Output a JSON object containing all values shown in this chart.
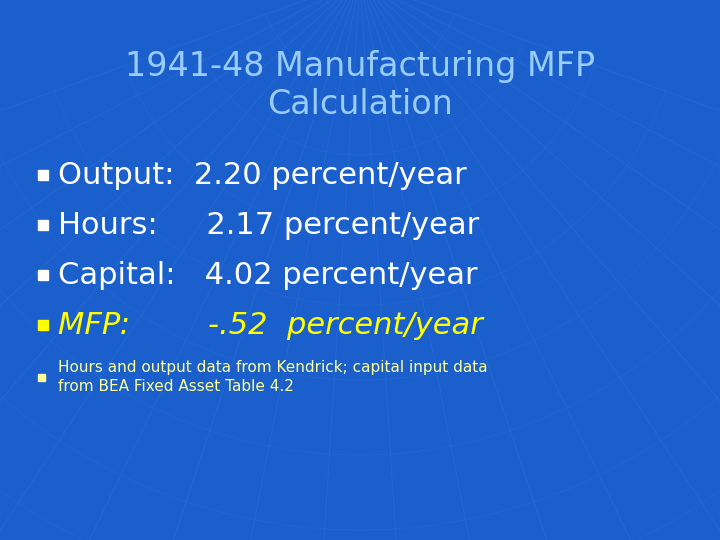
{
  "title_line1": "1941-48 Manufacturing MFP",
  "title_line2": "Calculation",
  "title_color": "#99CCFF",
  "title_fontsize": 24,
  "background_color": "#1A5FCC",
  "bullet_items": [
    {
      "label": "Output:  2.20 percent/year",
      "color": "#FFFFFF",
      "italic": false,
      "bold": false,
      "fontsize": 22
    },
    {
      "label": "Hours:     2.17 percent/year",
      "color": "#FFFFFF",
      "italic": false,
      "bold": false,
      "fontsize": 22
    },
    {
      "label": "Capital:   4.02 percent/year",
      "color": "#FFFFFF",
      "italic": false,
      "bold": false,
      "fontsize": 22
    },
    {
      "label": "MFP:        -.52  percent/year",
      "color": "#FFFF00",
      "italic": true,
      "bold": false,
      "fontsize": 22
    }
  ],
  "footnote_line1": "Hours and output data from Kendrick; capital input data",
  "footnote_line2": "from BEA Fixed Asset Table 4.2",
  "footnote_color": "#FFFF99",
  "footnote_fontsize": 11,
  "bullet_color": "#FFFFFF",
  "bullet_yellow_color": "#FFFF00",
  "grid_color": "#3377DD",
  "grid_alpha": 0.35
}
